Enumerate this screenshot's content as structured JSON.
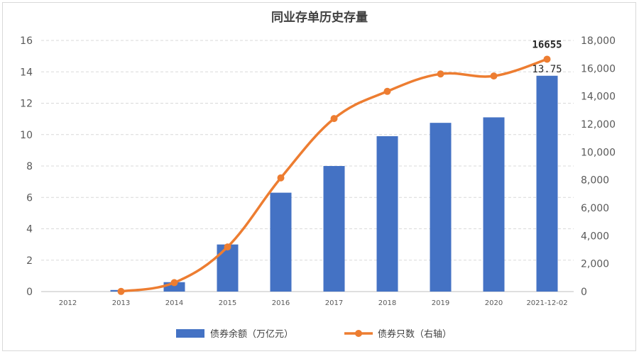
{
  "chart_data": {
    "type": "bar",
    "title": "同业存单历史存量",
    "categories": [
      "2012",
      "2013",
      "2014",
      "2015",
      "2016",
      "2017",
      "2018",
      "2019",
      "2020",
      "2021-12-02"
    ],
    "series": [
      {
        "name": "债券余额（万亿元）",
        "type": "bar",
        "axis": "left",
        "color": "#4472C4",
        "values": [
          0,
          0.1,
          0.6,
          3.0,
          6.3,
          8.0,
          9.9,
          10.75,
          11.1,
          13.75
        ]
      },
      {
        "name": "债券只数（右轴）",
        "type": "line",
        "axis": "right",
        "color": "#ED7D31",
        "values": [
          null,
          10,
          640,
          3200,
          8150,
          12400,
          14350,
          15600,
          15450,
          16655
        ]
      }
    ],
    "y_left": {
      "min": 0,
      "max": 16,
      "ticks": [
        "0",
        "2",
        "4",
        "6",
        "8",
        "10",
        "12",
        "14",
        "16"
      ]
    },
    "y_right": {
      "min": 0,
      "max": 18000,
      "ticks": [
        "0",
        "2,000",
        "4,000",
        "6,000",
        "8,000",
        "10,000",
        "12,000",
        "14,000",
        "16,000",
        "18,000"
      ]
    },
    "annotations": [
      {
        "text": "16655",
        "series": 1,
        "index": 9,
        "style": "bold"
      },
      {
        "text": "13.75",
        "series": 0,
        "index": 9,
        "style": "plain"
      }
    ],
    "grid": true,
    "legend_position": "bottom"
  }
}
